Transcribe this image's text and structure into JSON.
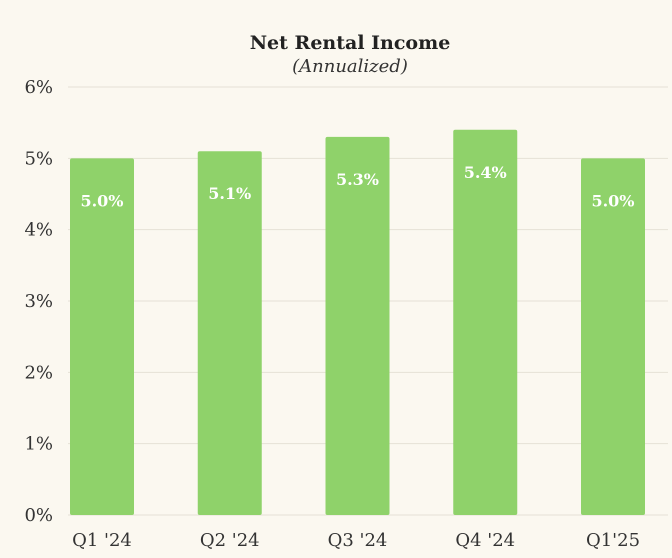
{
  "chart_data": {
    "type": "bar",
    "title": "Net Rental Income",
    "subtitle": "(Annualized)",
    "categories": [
      "Q1 '24",
      "Q2 '24",
      "Q3 '24",
      "Q4 '24",
      "Q1'25"
    ],
    "values": [
      5.0,
      5.1,
      5.3,
      5.4,
      5.0
    ],
    "data_labels": [
      "5.0%",
      "5.1%",
      "5.3%",
      "5.4%",
      "5.0%"
    ],
    "ylim": [
      0,
      6
    ],
    "yticks": [
      0,
      1,
      2,
      3,
      4,
      5,
      6
    ],
    "ytick_labels": [
      "0%",
      "1%",
      "2%",
      "3%",
      "4%",
      "5%",
      "6%"
    ],
    "xlabel": "",
    "ylabel": "",
    "grid": true,
    "legend": false,
    "colors": {
      "bar": "#8fd26a",
      "grid": "#e6e1d6",
      "background": "#fbf8f0"
    }
  }
}
